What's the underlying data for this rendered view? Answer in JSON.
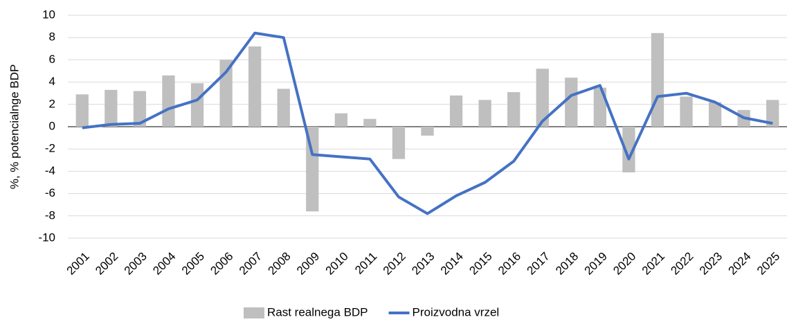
{
  "chart_data": {
    "type": "bar_line",
    "y_label": "%, % potencialnge BDP",
    "categories": [
      "2001",
      "2002",
      "2003",
      "2004",
      "2005",
      "2006",
      "2007",
      "2008",
      "2009",
      "2010",
      "2011",
      "2012",
      "2013",
      "2014",
      "2015",
      "2016",
      "2017",
      "2018",
      "2019",
      "2020",
      "2021",
      "2022",
      "2023",
      "2024",
      "2025"
    ],
    "series": [
      {
        "name": "Rast realnega BDP",
        "type": "bar",
        "color": "#bfbfbf",
        "values": [
          2.9,
          3.3,
          3.2,
          4.6,
          3.9,
          6.0,
          7.2,
          3.4,
          -7.6,
          1.2,
          0.7,
          -2.9,
          -0.8,
          2.8,
          2.4,
          3.1,
          5.2,
          4.4,
          3.5,
          -4.1,
          8.4,
          2.7,
          2.2,
          1.5,
          2.4
        ]
      },
      {
        "name": "Proizvodna vrzel",
        "type": "line",
        "color": "#4472c4",
        "values": [
          -0.1,
          0.2,
          0.3,
          1.6,
          2.4,
          4.9,
          8.4,
          8.0,
          -2.5,
          -2.7,
          -2.9,
          -6.3,
          -7.8,
          -6.2,
          -5.0,
          -3.1,
          0.5,
          2.8,
          3.7,
          -2.9,
          2.7,
          3.0,
          2.2,
          0.8,
          0.3
        ]
      }
    ],
    "ylim": [
      -10,
      10
    ],
    "yticks": [
      -10,
      -8,
      -6,
      -4,
      -2,
      0,
      2,
      4,
      6,
      8,
      10
    ],
    "grid": true,
    "legend": "bottom"
  }
}
